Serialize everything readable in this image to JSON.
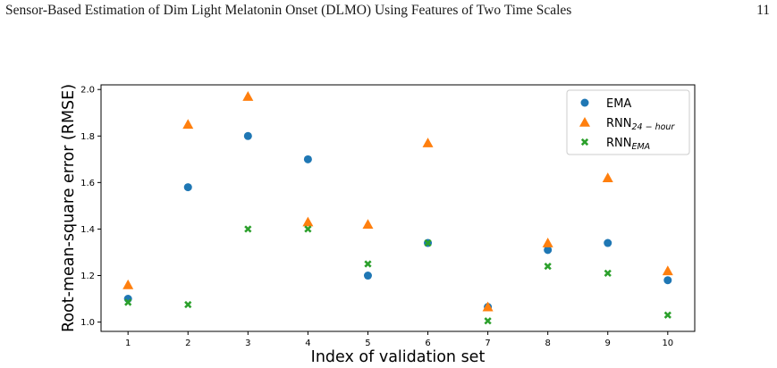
{
  "page": {
    "running_head": "Sensor-Based Estimation of Dim Light Melatonin Onset (DLMO) Using Features of Two Time Scales",
    "page_number": "11"
  },
  "chart_data": {
    "type": "scatter",
    "title": "",
    "xlabel": "Index of validation set",
    "ylabel": "Root-mean-square error (RMSE)",
    "x": [
      1,
      2,
      3,
      4,
      5,
      6,
      7,
      8,
      9,
      10
    ],
    "xlim": [
      0.55,
      10.45
    ],
    "ylim": [
      0.96,
      2.02
    ],
    "x_ticks": [
      "1",
      "2",
      "3",
      "4",
      "5",
      "6",
      "7",
      "8",
      "9",
      "10"
    ],
    "y_ticks": [
      "1.0",
      "1.2",
      "1.4",
      "1.6",
      "1.8",
      "2.0"
    ],
    "y_tick_values": [
      1.0,
      1.2,
      1.4,
      1.6,
      1.8,
      2.0
    ],
    "grid": false,
    "legend_position": "top-right",
    "series": [
      {
        "name": "EMA",
        "name_sub": "",
        "marker": "circle",
        "color": "#1f77b4",
        "values": [
          1.1,
          1.58,
          1.8,
          1.7,
          1.2,
          1.34,
          1.065,
          1.31,
          1.34,
          1.18
        ]
      },
      {
        "name": "RNN",
        "name_sub": "24 − hour",
        "marker": "triangle",
        "color": "#ff7f0e",
        "values": [
          1.16,
          1.85,
          1.97,
          1.43,
          1.42,
          1.77,
          1.065,
          1.34,
          1.62,
          1.22
        ]
      },
      {
        "name": "RNN",
        "name_sub": "EMA",
        "marker": "x",
        "color": "#2ca02c",
        "values": [
          1.085,
          1.075,
          1.4,
          1.4,
          1.25,
          1.34,
          1.005,
          1.24,
          1.21,
          1.03
        ]
      }
    ]
  }
}
